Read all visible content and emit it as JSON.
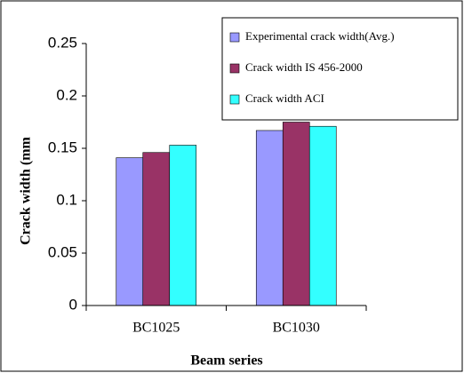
{
  "chart_data": {
    "type": "bar",
    "categories": [
      "BC1025",
      "BC1030"
    ],
    "series": [
      {
        "name": "Experimental crack width(Avg.)",
        "color": "#9999ff",
        "values": [
          0.141,
          0.167
        ]
      },
      {
        "name": "Crack width IS 456-2000",
        "color": "#993366",
        "values": [
          0.146,
          0.175
        ]
      },
      {
        "name": "Crack width ACI",
        "color": "#33ffff",
        "values": [
          0.153,
          0.171
        ]
      }
    ],
    "ylim": [
      0,
      0.25
    ],
    "yticks": [
      0,
      0.05,
      0.1,
      0.15,
      0.2,
      0.25
    ],
    "y_label": "Crack width (mm",
    "x_label": "Beam series",
    "grid": false,
    "legend": "top-right"
  }
}
